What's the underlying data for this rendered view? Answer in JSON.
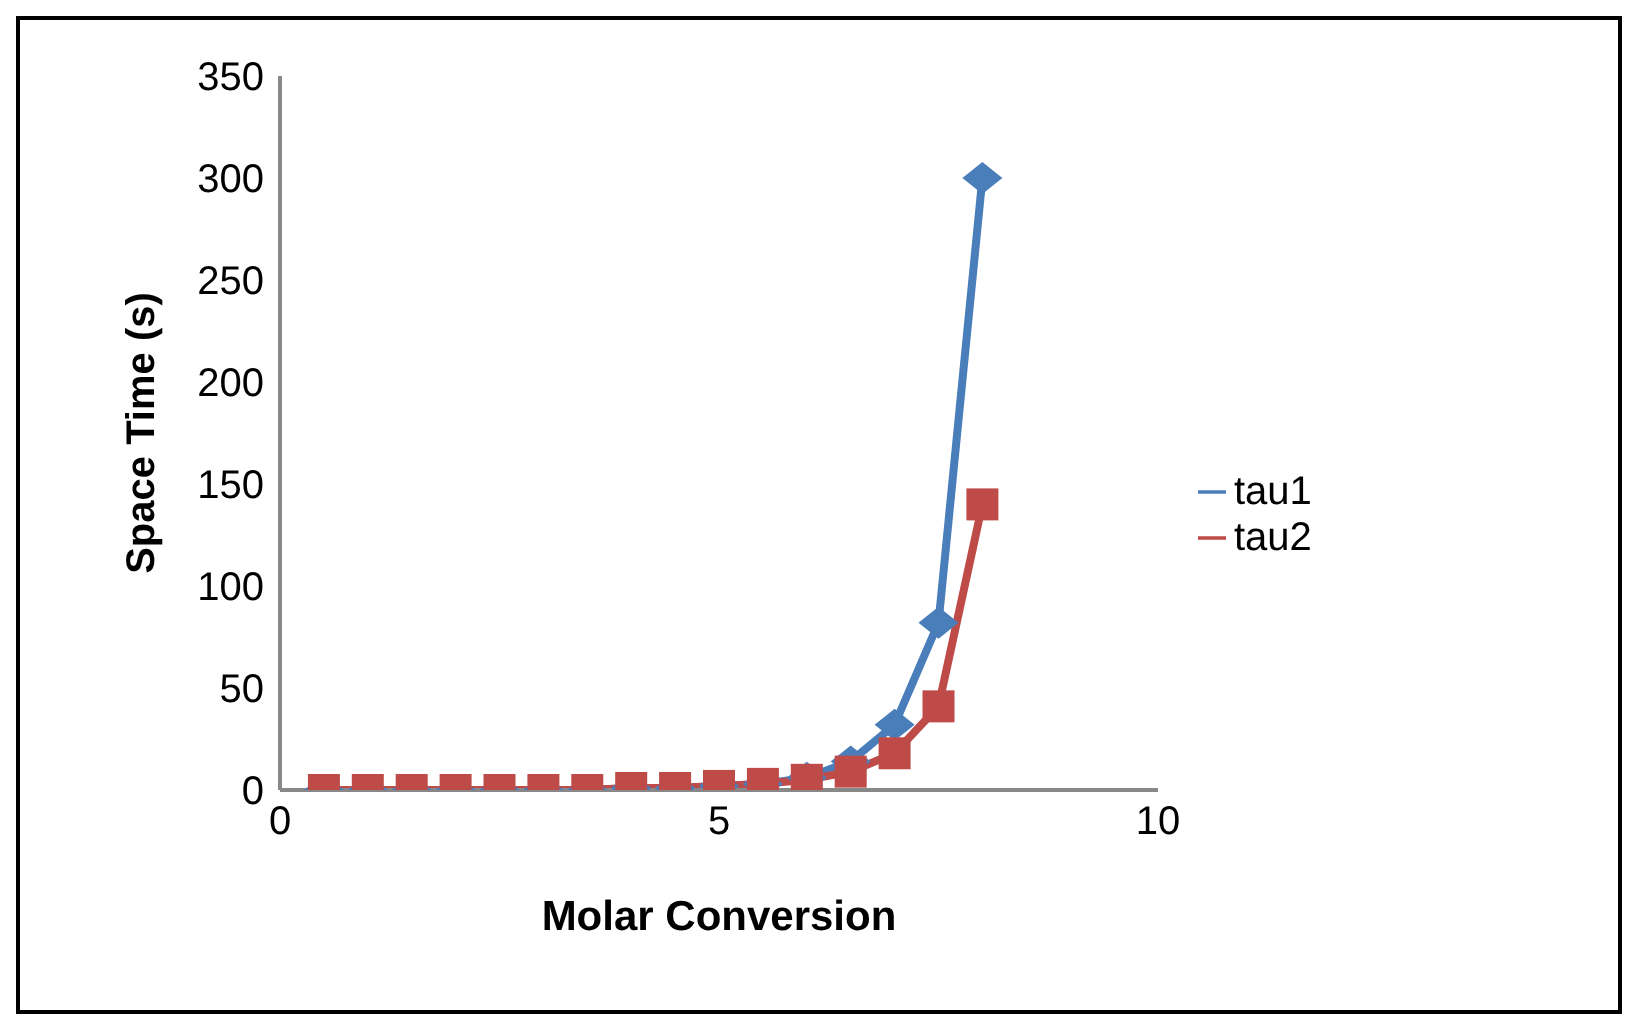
{
  "chart_data": {
    "type": "line",
    "xlabel": "Molar Conversion",
    "ylabel": "Space Time (s)",
    "x": [
      0.5,
      1,
      1.5,
      2,
      2.5,
      3,
      3.5,
      4,
      4.5,
      5,
      5.5,
      6,
      6.5,
      7,
      7.5,
      8
    ],
    "series": [
      {
        "name": "tau1",
        "color": "#4a7ebb",
        "marker": "diamond",
        "values": [
          0,
          0,
          0,
          0,
          0,
          0,
          0,
          1,
          1,
          2,
          3,
          6,
          14,
          32,
          82,
          300
        ]
      },
      {
        "name": "tau2",
        "color": "#be4b48",
        "marker": "square",
        "values": [
          0,
          0,
          0,
          0,
          0,
          0,
          0,
          1,
          1,
          2,
          3,
          5,
          9,
          18,
          41,
          140
        ]
      }
    ],
    "xlim": [
      0,
      10
    ],
    "xticks": [
      0,
      5,
      10
    ],
    "ylim": [
      0,
      350
    ],
    "yticks": [
      0,
      50,
      100,
      150,
      200,
      250,
      300,
      350
    ],
    "grid": false,
    "legend": "right"
  }
}
